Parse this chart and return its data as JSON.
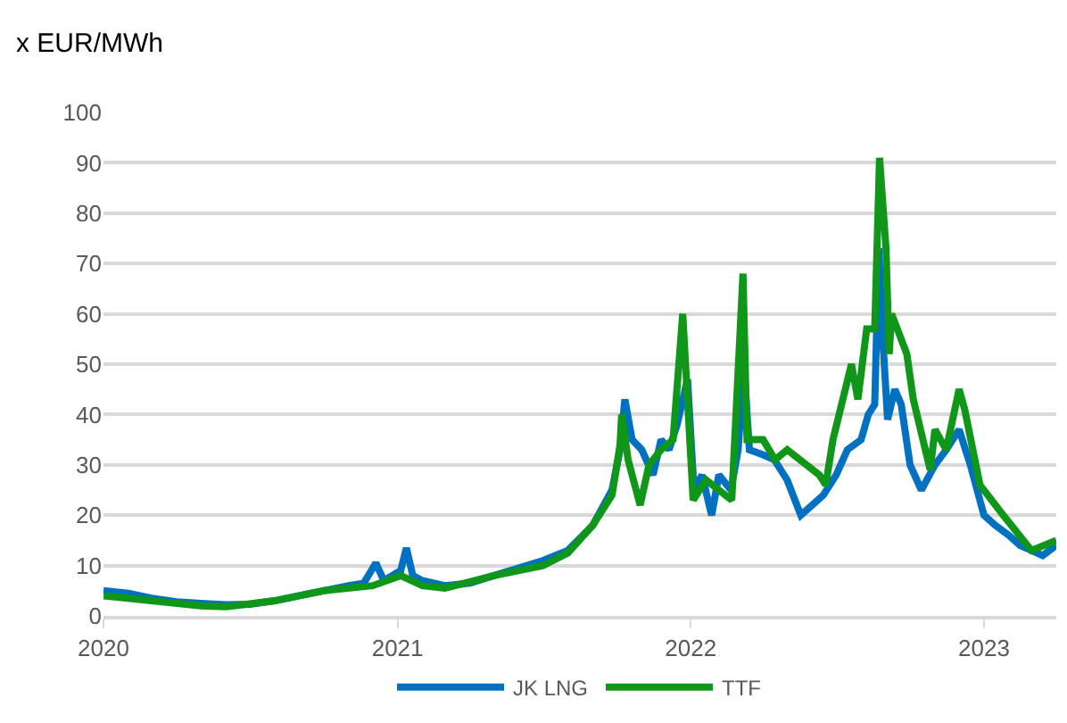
{
  "chart_data": {
    "type": "line",
    "ylabel": "x EUR/MWh",
    "xlim": [
      "2020-01-01",
      "2023-04-01"
    ],
    "xticks": [
      "2020",
      "2021",
      "2022",
      "2023"
    ],
    "ylim": [
      0,
      100
    ],
    "yticks": [
      0,
      10,
      20,
      30,
      40,
      50,
      60,
      70,
      80,
      90,
      100
    ],
    "grid": "y",
    "legend": "bottom",
    "marker": "none",
    "line_style": "solid",
    "series": [
      {
        "name": "JK LNG",
        "color": "#0070c0",
        "x": [
          "2020-01-01",
          "2020-02-01",
          "2020-03-01",
          "2020-04-01",
          "2020-05-01",
          "2020-06-01",
          "2020-07-01",
          "2020-08-01",
          "2020-09-01",
          "2020-10-01",
          "2020-11-01",
          "2020-11-20",
          "2020-12-05",
          "2020-12-15",
          "2021-01-05",
          "2021-01-12",
          "2021-01-20",
          "2021-02-01",
          "2021-03-01",
          "2021-04-01",
          "2021-05-01",
          "2021-06-01",
          "2021-07-01",
          "2021-08-01",
          "2021-09-01",
          "2021-09-25",
          "2021-10-05",
          "2021-10-11",
          "2021-10-20",
          "2021-11-01",
          "2021-11-15",
          "2021-11-25",
          "2021-12-05",
          "2021-12-15",
          "2021-12-28",
          "2022-01-05",
          "2022-01-15",
          "2022-01-27",
          "2022-02-05",
          "2022-02-20",
          "2022-03-01",
          "2022-03-08",
          "2022-03-15",
          "2022-04-01",
          "2022-04-15",
          "2022-05-01",
          "2022-05-18",
          "2022-06-01",
          "2022-06-15",
          "2022-07-01",
          "2022-07-15",
          "2022-08-01",
          "2022-08-10",
          "2022-08-18",
          "2022-08-23",
          "2022-08-28",
          "2022-09-03",
          "2022-09-12",
          "2022-09-20",
          "2022-10-01",
          "2022-10-15",
          "2022-11-01",
          "2022-11-15",
          "2022-12-01",
          "2022-12-15",
          "2023-01-01",
          "2023-01-15",
          "2023-02-01",
          "2023-02-15",
          "2023-03-01",
          "2023-03-15",
          "2023-04-01"
        ],
        "values": [
          5,
          4.5,
          3.5,
          2.8,
          2.5,
          2.2,
          2.3,
          3,
          4,
          5,
          6,
          6.5,
          10.5,
          7,
          9,
          13.5,
          8,
          7,
          6,
          6.5,
          8,
          9.5,
          11,
          13,
          18,
          25,
          33,
          43,
          35,
          33,
          28,
          35,
          33,
          38,
          47,
          25,
          28,
          20,
          28,
          25,
          33,
          50,
          33,
          32,
          31,
          27,
          20,
          22,
          24,
          28,
          33,
          35,
          40,
          42,
          73,
          55,
          39,
          45,
          42,
          30,
          25,
          30,
          33,
          37,
          30,
          20,
          18,
          16,
          14,
          13,
          12,
          14
        ]
      },
      {
        "name": "TTF",
        "color": "#109618",
        "x": [
          "2020-01-01",
          "2020-03-01",
          "2020-05-01",
          "2020-06-01",
          "2020-08-01",
          "2020-10-01",
          "2020-12-01",
          "2021-01-05",
          "2021-02-01",
          "2021-03-01",
          "2021-05-01",
          "2021-07-01",
          "2021-08-01",
          "2021-09-01",
          "2021-09-25",
          "2021-10-05",
          "2021-10-07",
          "2021-10-15",
          "2021-10-30",
          "2021-11-10",
          "2021-11-25",
          "2021-12-10",
          "2021-12-22",
          "2022-01-04",
          "2022-01-20",
          "2022-02-21",
          "2022-03-07",
          "2022-03-12",
          "2022-04-01",
          "2022-04-16",
          "2022-05-01",
          "2022-06-10",
          "2022-06-18",
          "2022-06-27",
          "2022-07-20",
          "2022-07-28",
          "2022-08-08",
          "2022-08-18",
          "2022-08-24",
          "2022-09-01",
          "2022-09-05",
          "2022-09-08",
          "2022-09-27",
          "2022-10-05",
          "2022-10-26",
          "2022-11-01",
          "2022-11-15",
          "2022-12-01",
          "2022-12-08",
          "2022-12-27",
          "2023-01-25",
          "2023-02-14",
          "2023-03-01",
          "2023-04-01"
        ],
        "values": [
          4,
          3,
          2,
          1.8,
          3,
          5,
          6,
          8,
          6,
          5.5,
          8,
          10,
          12.5,
          18,
          24,
          34,
          40,
          31,
          22,
          30,
          33,
          35,
          60,
          23,
          27,
          23,
          68,
          35,
          35,
          31,
          33,
          28,
          26,
          35,
          50,
          43,
          57,
          57,
          91,
          73,
          52,
          60,
          52,
          43,
          29,
          37,
          33,
          45,
          41,
          26,
          20,
          16,
          13,
          15
        ]
      }
    ]
  }
}
